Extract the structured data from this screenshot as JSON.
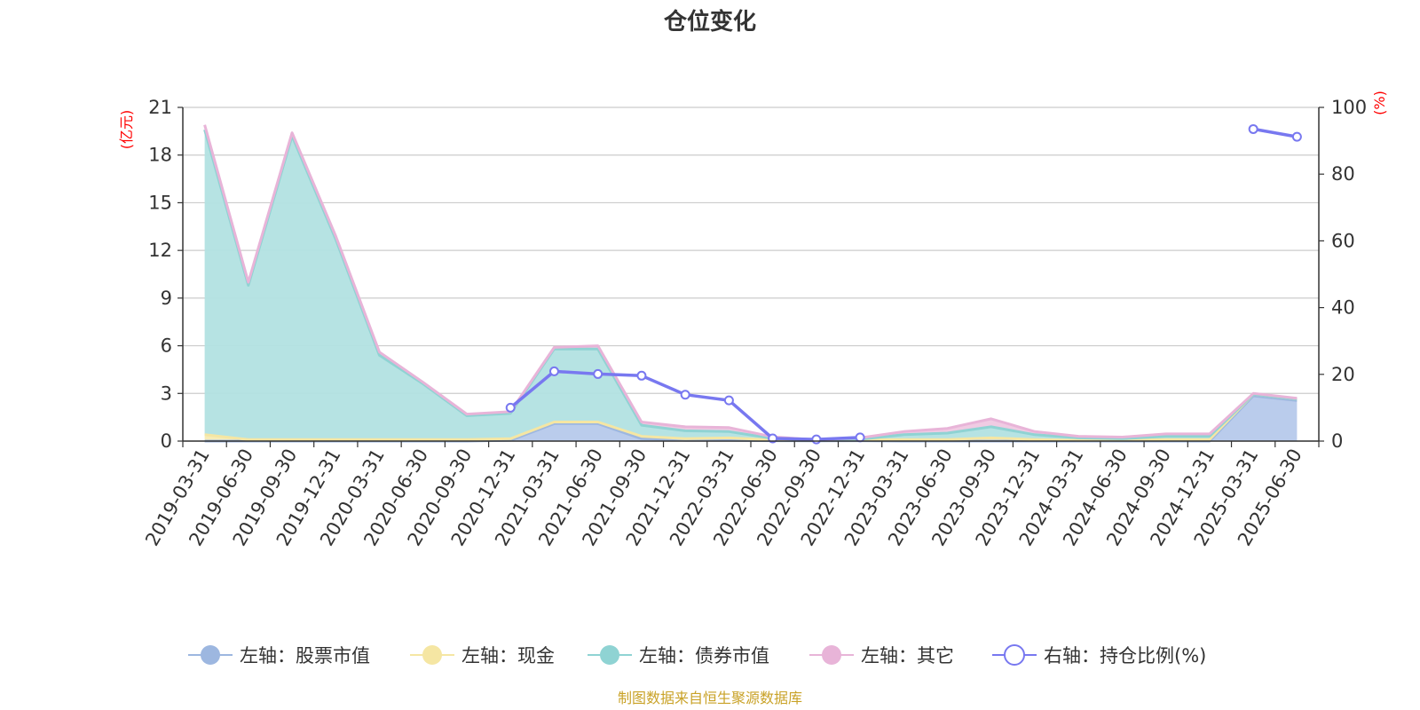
{
  "chart_data": {
    "type": "area",
    "title": "仓位变化",
    "source": "制图数据来自恒生聚源数据库",
    "left_unit": "(亿元)",
    "right_unit": "(%)",
    "x": [
      "2019-03-31",
      "2019-06-30",
      "2019-09-30",
      "2019-12-31",
      "2020-03-31",
      "2020-06-30",
      "2020-09-30",
      "2020-12-31",
      "2021-03-31",
      "2021-06-30",
      "2021-09-30",
      "2021-12-31",
      "2022-03-31",
      "2022-06-30",
      "2022-09-30",
      "2022-12-31",
      "2023-03-31",
      "2023-06-30",
      "2023-09-30",
      "2023-12-31",
      "2024-03-31",
      "2024-06-30",
      "2024-09-30",
      "2024-12-31",
      "2025-03-31",
      "2025-06-30"
    ],
    "left_axis": {
      "min": 0,
      "max": 21,
      "ticks": [
        "0",
        "3",
        "6",
        "9",
        "12",
        "15",
        "18",
        "21"
      ]
    },
    "right_axis": {
      "min": 0,
      "max": 100,
      "ticks": [
        "0",
        "20",
        "40",
        "60",
        "80",
        "100"
      ]
    },
    "legend_placement": "bottom",
    "series": [
      {
        "name": "左轴：股票市值",
        "axis": "left",
        "color": "#9db7e0",
        "fill": "#b6c9eb",
        "values": [
          0,
          0,
          0,
          0,
          0,
          0,
          0,
          0.05,
          1.1,
          1.1,
          0.15,
          0.05,
          0.05,
          0.02,
          0.01,
          0.02,
          0,
          0,
          0,
          0,
          0,
          0,
          0,
          0,
          2.85,
          2.55
        ]
      },
      {
        "name": "左轴：现金",
        "axis": "left",
        "color": "#f5e6a3",
        "fill": "#f7ebb3",
        "values": [
          0.4,
          0.1,
          0.1,
          0.1,
          0.1,
          0.1,
          0.1,
          0.1,
          0.1,
          0.1,
          0.15,
          0.1,
          0.15,
          0.05,
          0.05,
          0.05,
          0.1,
          0.1,
          0.2,
          0.1,
          0.05,
          0.05,
          0.1,
          0.1,
          0.1,
          0.1
        ]
      },
      {
        "name": "左轴：债券市值",
        "axis": "left",
        "color": "#8fd3d3",
        "fill": "#b2e1e1",
        "values": [
          19.2,
          9.7,
          19.1,
          12.6,
          5.3,
          3.5,
          1.5,
          1.6,
          4.6,
          4.6,
          0.7,
          0.5,
          0.4,
          0.1,
          0,
          0.05,
          0.3,
          0.4,
          0.7,
          0.3,
          0.15,
          0.1,
          0.2,
          0.2,
          0,
          0
        ]
      },
      {
        "name": "左轴：其它",
        "axis": "left",
        "color": "#e8b4d8",
        "fill": "#efc8e2",
        "values": [
          0.3,
          0.2,
          0.2,
          0.2,
          0.2,
          0.1,
          0.1,
          0.1,
          0.1,
          0.2,
          0.2,
          0.25,
          0.25,
          0.1,
          0.02,
          0.08,
          0.2,
          0.3,
          0.5,
          0.2,
          0.1,
          0.1,
          0.15,
          0.15,
          0.05,
          0.05
        ]
      },
      {
        "name": "右轴：持仓比例(%)",
        "axis": "right",
        "color": "#7878f0",
        "values": [
          null,
          null,
          null,
          null,
          null,
          null,
          null,
          10.0,
          20.9,
          20.1,
          19.6,
          13.9,
          12.2,
          0.8,
          0.5,
          1.1,
          null,
          null,
          null,
          null,
          null,
          null,
          null,
          null,
          93.5,
          91.2
        ]
      }
    ]
  }
}
